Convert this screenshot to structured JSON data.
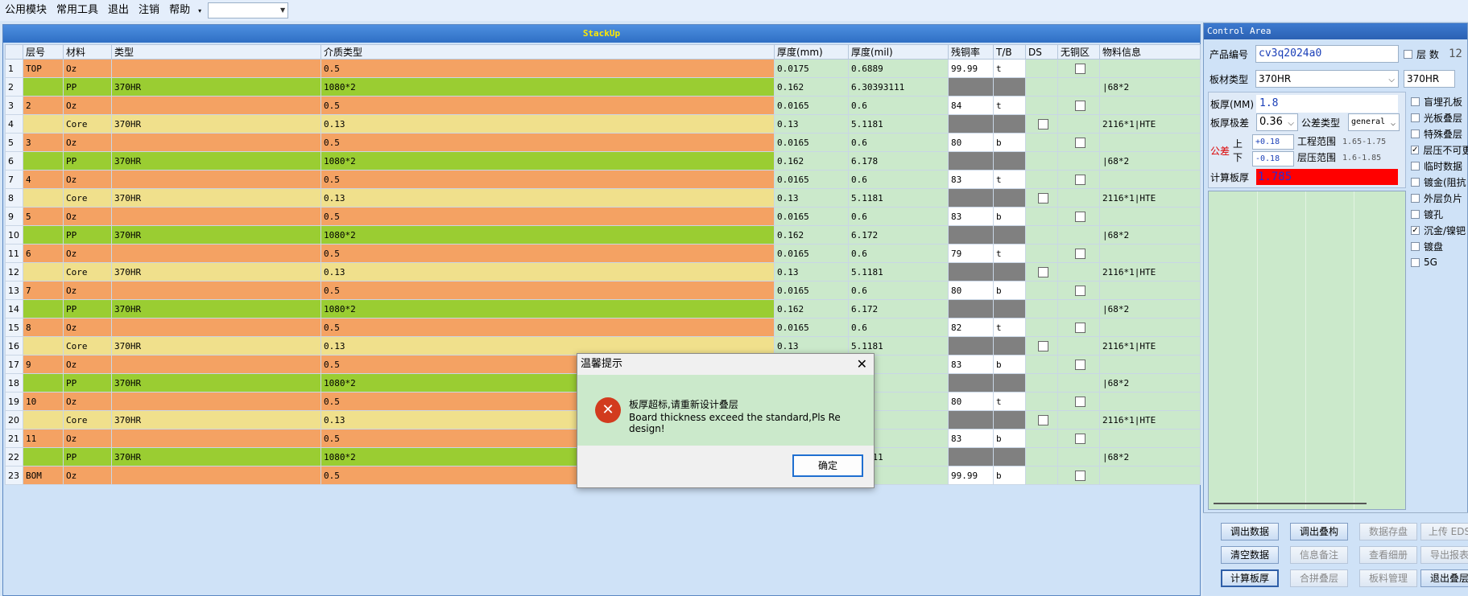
{
  "menu": {
    "items": [
      "公用模块",
      "常用工具",
      "退出",
      "注销",
      "帮助"
    ],
    "dropdown_marker": "▾",
    "combo_value": ""
  },
  "stack": {
    "title": "StackUp",
    "columns": [
      "层号",
      "材料",
      "类型",
      "介质类型",
      "厚度(mm)",
      "厚度(mil)",
      "残铜率",
      "T/B",
      "DS",
      "无铜区",
      "物料信息"
    ],
    "rows": [
      {
        "n": "1",
        "layer": "TOP",
        "mat": "Oz",
        "type": "",
        "med": "0.5",
        "mm": "0.0175",
        "mil": "0.6889",
        "cu": "99.99",
        "tb": "t",
        "kind": "oz",
        "info": ""
      },
      {
        "n": "2",
        "layer": "",
        "mat": "PP",
        "type": "370HR",
        "med": "1080*2",
        "mm": "0.162",
        "mil": "6.30393111",
        "cu": "",
        "tb": "",
        "kind": "pp",
        "info": "|68*2"
      },
      {
        "n": "3",
        "layer": "2",
        "mat": "Oz",
        "type": "",
        "med": "0.5",
        "mm": "0.0165",
        "mil": "0.6",
        "cu": "84",
        "tb": "t",
        "kind": "oz",
        "info": ""
      },
      {
        "n": "4",
        "layer": "",
        "mat": "Core",
        "type": "370HR",
        "med": "0.13",
        "mm": "0.13",
        "mil": "5.1181",
        "cu": "",
        "tb": "",
        "kind": "core",
        "info": "2116*1|HTE"
      },
      {
        "n": "5",
        "layer": "3",
        "mat": "Oz",
        "type": "",
        "med": "0.5",
        "mm": "0.0165",
        "mil": "0.6",
        "cu": "80",
        "tb": "b",
        "kind": "oz",
        "info": ""
      },
      {
        "n": "6",
        "layer": "",
        "mat": "PP",
        "type": "370HR",
        "med": "1080*2",
        "mm": "0.162",
        "mil": "6.178",
        "cu": "",
        "tb": "",
        "kind": "pp",
        "info": "|68*2"
      },
      {
        "n": "7",
        "layer": "4",
        "mat": "Oz",
        "type": "",
        "med": "0.5",
        "mm": "0.0165",
        "mil": "0.6",
        "cu": "83",
        "tb": "t",
        "kind": "oz",
        "info": ""
      },
      {
        "n": "8",
        "layer": "",
        "mat": "Core",
        "type": "370HR",
        "med": "0.13",
        "mm": "0.13",
        "mil": "5.1181",
        "cu": "",
        "tb": "",
        "kind": "core",
        "info": "2116*1|HTE"
      },
      {
        "n": "9",
        "layer": "5",
        "mat": "Oz",
        "type": "",
        "med": "0.5",
        "mm": "0.0165",
        "mil": "0.6",
        "cu": "83",
        "tb": "b",
        "kind": "oz",
        "info": ""
      },
      {
        "n": "10",
        "layer": "",
        "mat": "PP",
        "type": "370HR",
        "med": "1080*2",
        "mm": "0.162",
        "mil": "6.172",
        "cu": "",
        "tb": "",
        "kind": "pp",
        "info": "|68*2"
      },
      {
        "n": "11",
        "layer": "6",
        "mat": "Oz",
        "type": "",
        "med": "0.5",
        "mm": "0.0165",
        "mil": "0.6",
        "cu": "79",
        "tb": "t",
        "kind": "oz",
        "info": ""
      },
      {
        "n": "12",
        "layer": "",
        "mat": "Core",
        "type": "370HR",
        "med": "0.13",
        "mm": "0.13",
        "mil": "5.1181",
        "cu": "",
        "tb": "",
        "kind": "core",
        "info": "2116*1|HTE"
      },
      {
        "n": "13",
        "layer": "7",
        "mat": "Oz",
        "type": "",
        "med": "0.5",
        "mm": "0.0165",
        "mil": "0.6",
        "cu": "80",
        "tb": "b",
        "kind": "oz",
        "info": ""
      },
      {
        "n": "14",
        "layer": "",
        "mat": "PP",
        "type": "370HR",
        "med": "1080*2",
        "mm": "0.162",
        "mil": "6.172",
        "cu": "",
        "tb": "",
        "kind": "pp",
        "info": "|68*2"
      },
      {
        "n": "15",
        "layer": "8",
        "mat": "Oz",
        "type": "",
        "med": "0.5",
        "mm": "0.0165",
        "mil": "0.6",
        "cu": "82",
        "tb": "t",
        "kind": "oz",
        "info": ""
      },
      {
        "n": "16",
        "layer": "",
        "mat": "Core",
        "type": "370HR",
        "med": "0.13",
        "mm": "0.13",
        "mil": "5.1181",
        "cu": "",
        "tb": "",
        "kind": "core",
        "info": "2116*1|HTE"
      },
      {
        "n": "17",
        "layer": "9",
        "mat": "Oz",
        "type": "",
        "med": "0.5",
        "mm": "",
        "mil": "",
        "cu": "83",
        "tb": "b",
        "kind": "oz",
        "info": ""
      },
      {
        "n": "18",
        "layer": "",
        "mat": "PP",
        "type": "370HR",
        "med": "1080*2",
        "mm": "",
        "mil": "3",
        "cu": "",
        "tb": "",
        "kind": "pp",
        "info": "|68*2"
      },
      {
        "n": "19",
        "layer": "10",
        "mat": "Oz",
        "type": "",
        "med": "0.5",
        "mm": "",
        "mil": "",
        "cu": "80",
        "tb": "t",
        "kind": "oz",
        "info": ""
      },
      {
        "n": "20",
        "layer": "",
        "mat": "Core",
        "type": "370HR",
        "med": "0.13",
        "mm": "",
        "mil": "31",
        "cu": "",
        "tb": "",
        "kind": "core",
        "info": "2116*1|HTE"
      },
      {
        "n": "21",
        "layer": "11",
        "mat": "Oz",
        "type": "",
        "med": "0.5",
        "mm": "",
        "mil": "",
        "cu": "83",
        "tb": "b",
        "kind": "oz",
        "info": ""
      },
      {
        "n": "22",
        "layer": "",
        "mat": "PP",
        "type": "370HR",
        "med": "1080*2",
        "mm": "",
        "mil": "793111",
        "cu": "",
        "tb": "",
        "kind": "pp",
        "info": "|68*2"
      },
      {
        "n": "23",
        "layer": "BOM",
        "mat": "Oz",
        "type": "",
        "med": "0.5",
        "mm": "",
        "mil": "39",
        "cu": "99.99",
        "tb": "b",
        "kind": "oz",
        "info": ""
      }
    ]
  },
  "control": {
    "title": "Control Area",
    "product_label": "产品编号",
    "product_value": "cv3q2024a0",
    "layers_label": "层 数",
    "layers_value": "12",
    "material_label": "板材类型",
    "material_value": "370HR",
    "material_value2": "370HR",
    "thick_label": "板厚(MM)",
    "thick_value": "1.8",
    "tol_label": "板厚极差",
    "tol_value": "0.36",
    "tol_type_label": "公差类型",
    "tol_type_value": "general",
    "diff_label": "公差",
    "up_label": "上",
    "down_label": "下",
    "up_value": "+0.18",
    "down_value": "-0.18",
    "eng_range_label": "工程范围",
    "eng_range_value": "1.65-1.75",
    "press_range_label": "层压范围",
    "press_range_value": "1.6-1.85",
    "calc_label": "计算板厚",
    "calc_value": "1.785",
    "checks": [
      {
        "label": "盲埋孔板",
        "checked": false
      },
      {
        "label": "光板叠层",
        "checked": false
      },
      {
        "label": "特殊叠层",
        "checked": false
      },
      {
        "label": "层压不可更",
        "checked": true
      },
      {
        "label": "临时数据",
        "checked": false
      },
      {
        "label": "镀金(阻抗",
        "checked": false
      },
      {
        "label": "外层负片",
        "checked": false
      },
      {
        "label": "镀孔",
        "checked": false
      },
      {
        "label": "沉金/镍钯",
        "checked": true
      },
      {
        "label": "镀盘",
        "checked": false
      },
      {
        "label": "5G",
        "checked": false
      }
    ],
    "buttons": {
      "load_data": "调出数据",
      "load_stack": "调出叠构",
      "save_data": "数据存盘",
      "upload": "上传 EDS",
      "clear_data": "清空数据",
      "info_note": "信息备注",
      "view_detail": "查看细册",
      "export": "导出报表",
      "calc_thick": "计算板厚",
      "combine": "合拼叠层",
      "material_mgmt": "板料管理",
      "exit_stack": "退出叠层"
    }
  },
  "dialog": {
    "title": "温馨提示",
    "close": "✕",
    "icon": "✕",
    "msg_cn": "板厚超标,请重新设计叠层",
    "msg_en": "Board thickness exceed the standard,Pls Re design!",
    "ok": "确定"
  },
  "colors": {
    "oz": "#f4a263",
    "pp": "#9acd32",
    "core": "#f0e08c",
    "calc_bg": "#ff0000"
  }
}
